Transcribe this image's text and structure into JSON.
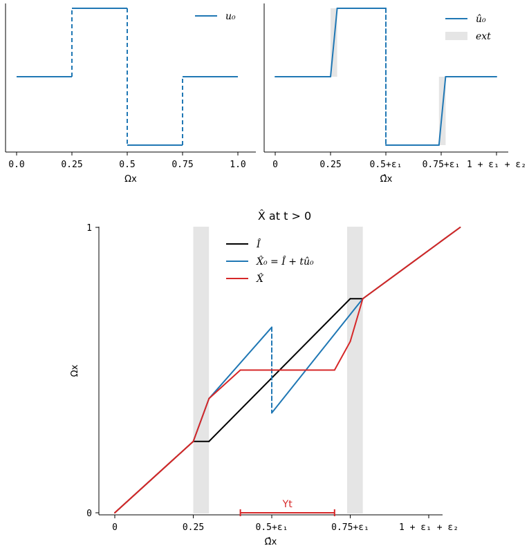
{
  "chart_data": [
    {
      "type": "line",
      "xlabel": "Ωx",
      "ylabel": "",
      "xlim": [
        -0.04,
        1.04
      ],
      "ylim": [
        -0.1,
        1.0
      ],
      "xticks": [
        0.0,
        0.25,
        0.5,
        0.75,
        1.0
      ],
      "xtick_labels": [
        "0.0",
        "0.25",
        "0.5",
        "0.75",
        "1.0"
      ],
      "legend": {
        "placement": "top-right",
        "entries": [
          {
            "label": "u₀",
            "color": "#1f77b4"
          }
        ]
      },
      "series": [
        {
          "name": "u₀",
          "color": "#1f77b4",
          "style": "step",
          "x": [
            0,
            0.25,
            0.25,
            0.5,
            0.5,
            0.75,
            0.75,
            1.0
          ],
          "y": [
            0,
            0,
            1,
            1,
            -1,
            -1,
            0,
            0
          ],
          "dashed_verticals": true
        }
      ],
      "grid": false
    },
    {
      "type": "line",
      "xlabel": "Ω̂x",
      "ylabel": "",
      "xlim": [
        -0.05,
        1.05
      ],
      "ylim": [
        -0.1,
        1.0
      ],
      "xticks": [
        0,
        0.25,
        0.5,
        0.75,
        1.0
      ],
      "xtick_labels": [
        "0",
        "0.25",
        "0.5+ε₁",
        "0.75+ε₁",
        "1 + ε₁ + ε₂"
      ],
      "legend": {
        "placement": "top-right",
        "entries": [
          {
            "label": "û₀",
            "color": "#1f77b4"
          },
          {
            "label": "ext",
            "color": "#e5e5e5"
          }
        ]
      },
      "shaded_regions": [
        [
          0.25,
          0.28
        ],
        [
          0.74,
          0.77
        ]
      ],
      "series": [
        {
          "name": "û₀",
          "color": "#1f77b4",
          "x": [
            0,
            0.25,
            0.28,
            0.5,
            0.5,
            0.74,
            0.77,
            1.0
          ],
          "y": [
            0,
            0,
            1,
            1,
            -1,
            -1,
            0,
            0
          ],
          "dashed_segment": [
            3,
            4
          ]
        }
      ],
      "grid": false
    },
    {
      "type": "line",
      "title": "X̂  at  t > 0",
      "xlabel": "Ω̂x",
      "ylabel": "Ωx",
      "xlim": [
        0,
        1.15
      ],
      "ylim": [
        0,
        1.0
      ],
      "xticks": [
        0,
        0.25,
        0.5,
        0.75,
        1.0
      ],
      "xtick_labels": [
        "0",
        "0.25",
        "0.5+ε₁",
        "0.75+ε₁",
        "1 + ε₁ + ε₂"
      ],
      "yticks": [
        0,
        1
      ],
      "ytick_labels": [
        "0",
        "1"
      ],
      "legend": {
        "placement": "top-center",
        "entries": [
          {
            "label": "Î",
            "color": "#000000"
          },
          {
            "label": "X̂₀ = Î + tû₀",
            "color": "#1f77b4"
          },
          {
            "label": "X̂",
            "color": "#d62728"
          }
        ]
      },
      "shaded_regions": [
        [
          0.25,
          0.3
        ],
        [
          0.74,
          0.79
        ]
      ],
      "series": [
        {
          "name": "Î",
          "color": "#000000",
          "x": [
            0,
            0.25,
            0.3,
            0.75,
            0.79,
            1.1
          ],
          "y": [
            0,
            0.25,
            0.25,
            0.75,
            0.75,
            1.0
          ]
        },
        {
          "name": "X̂₀ = Î + tû₀",
          "color": "#1f77b4",
          "x": [
            0.25,
            0.3,
            0.5,
            0.5,
            0.79
          ],
          "y": [
            0.25,
            0.4,
            0.65,
            0.35,
            0.75
          ],
          "dashed_segment": [
            2,
            3
          ]
        },
        {
          "name": "X̂",
          "color": "#d62728",
          "x": [
            0,
            0.25,
            0.3,
            0.4,
            0.7,
            0.75,
            0.79,
            1.1
          ],
          "y": [
            0,
            0.25,
            0.4,
            0.5,
            0.5,
            0.6,
            0.75,
            1.0
          ]
        }
      ],
      "annotations": [
        {
          "text": "Υt",
          "x_range": [
            0.4,
            0.7
          ],
          "y": 0,
          "color": "#d62728"
        }
      ],
      "grid": false
    }
  ]
}
